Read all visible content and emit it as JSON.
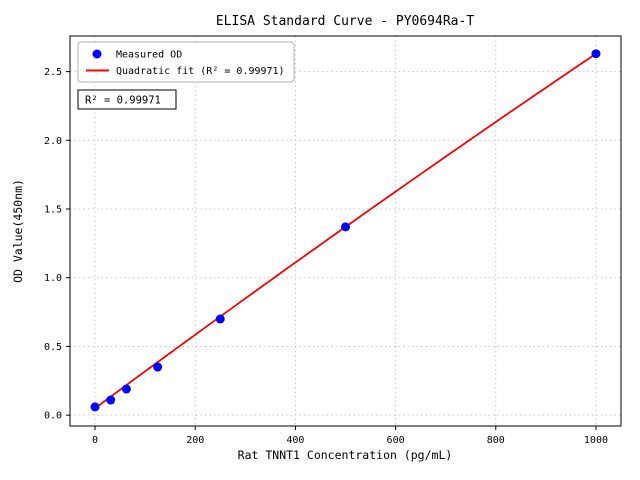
{
  "figure": {
    "background": "#ffffff"
  },
  "chart_data": {
    "type": "scatter",
    "title": "ELISA Standard Curve - PY0694Ra-T",
    "xlabel": "Rat TNNT1 Concentration (pg/mL)",
    "ylabel": "OD Value(450nm)",
    "xlim": [
      -50,
      1050
    ],
    "ylim": [
      -0.079,
      2.759
    ],
    "xticks": [
      0,
      200,
      400,
      600,
      800,
      1000
    ],
    "yticks": [
      0.0,
      0.5,
      1.0,
      1.5,
      2.0,
      2.5
    ],
    "grid": true,
    "colors": {
      "points": "#0000ff",
      "fit_line": "#ff0000",
      "grid": "#bbbbbb",
      "axis": "#000000"
    },
    "series": [
      {
        "name": "Measured OD",
        "type": "scatter",
        "color": "#0000ff",
        "x": [
          0,
          31.25,
          62.5,
          125,
          250,
          500,
          1000
        ],
        "y": [
          0.06,
          0.11,
          0.19,
          0.35,
          0.7,
          1.37,
          2.63
        ]
      },
      {
        "name": "Quadratic fit",
        "type": "line",
        "color": "#ff0000",
        "fit_coefficients": {
          "a": 0.05,
          "b": 0.0027,
          "c": -1.2e-07
        },
        "x_range": [
          0,
          1000
        ]
      }
    ],
    "legend": {
      "position": "upper-left",
      "entries": [
        {
          "label": "Measured OD",
          "marker": "dot",
          "color": "#0000ff"
        },
        {
          "label": "Quadratic fit (R² = 0.99971)",
          "marker": "line",
          "color": "#ff0000"
        }
      ]
    },
    "annotation": "R² = 0.99971"
  }
}
